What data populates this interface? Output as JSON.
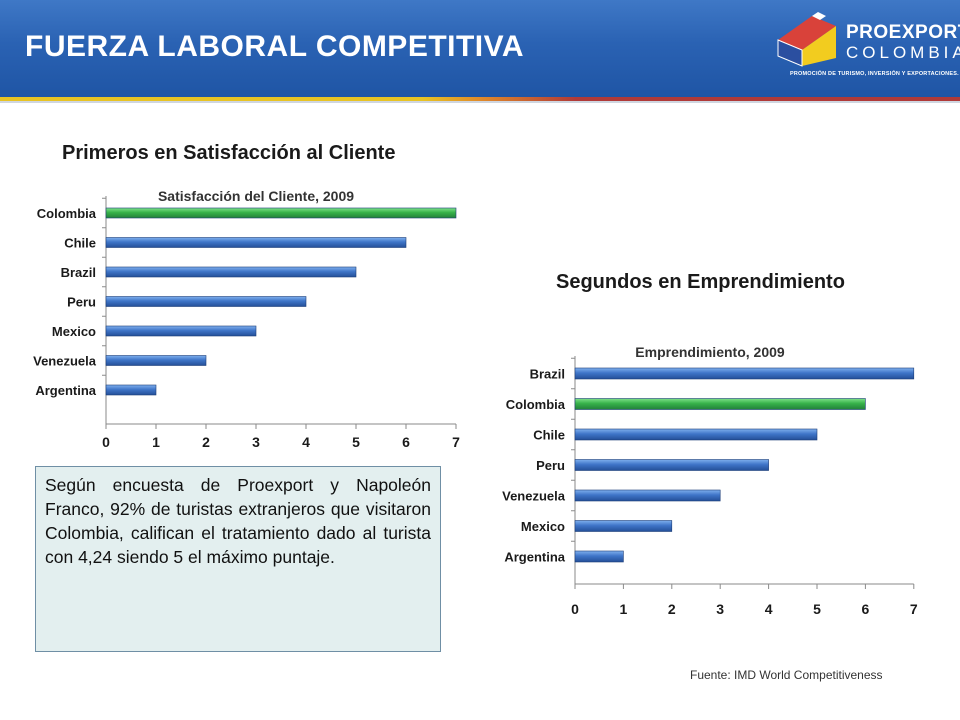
{
  "header": {
    "title": "FUERZA LABORAL COMPETITIVA"
  },
  "logo": {
    "name": "PROEXPORT",
    "country": "COLOMBIA",
    "tagline": "PROMOCIÓN DE TURISMO, INVERSIÓN Y EXPORTACIONES.",
    "icon": "house-logo-icon"
  },
  "colors": {
    "bar_default": "#3f75c8",
    "bar_highlight": "#37b24a",
    "header_blue": "#2a62b3"
  },
  "sections": {
    "satisfaction_heading": "Primeros en Satisfacción al Cliente",
    "entrepreneurship_heading": "Segundos en Emprendimiento"
  },
  "chart_data": [
    {
      "type": "bar",
      "orientation": "horizontal",
      "title": "Satisfacción del Cliente, 2009",
      "categories": [
        "Colombia",
        "Chile",
        "Brazil",
        "Peru",
        "Mexico",
        "Venezuela",
        "Argentina"
      ],
      "values": [
        7,
        6,
        5,
        4,
        3,
        2,
        1
      ],
      "highlight": "Colombia",
      "xlim": [
        0,
        7
      ],
      "ticks": [
        0,
        1,
        2,
        3,
        4,
        5,
        6,
        7
      ],
      "xlabel": "",
      "ylabel": "",
      "grid": false
    },
    {
      "type": "bar",
      "orientation": "horizontal",
      "title": "Emprendimiento, 2009",
      "categories": [
        "Brazil",
        "Colombia",
        "Chile",
        "Peru",
        "Venezuela",
        "Mexico",
        "Argentina"
      ],
      "values": [
        7,
        6,
        5,
        4,
        3,
        2,
        1
      ],
      "highlight": "Colombia",
      "xlim": [
        0,
        7
      ],
      "ticks": [
        0,
        1,
        2,
        3,
        4,
        5,
        6,
        7
      ],
      "xlabel": "",
      "ylabel": "",
      "grid": false
    }
  ],
  "note": "Según encuesta de Proexport y Napoleón Franco, 92% de turistas extranjeros que visitaron Colombia, califican el tratamiento dado al turista con 4,24 siendo 5 el máximo puntaje.",
  "source": "Fuente: IMD World Competitiveness"
}
